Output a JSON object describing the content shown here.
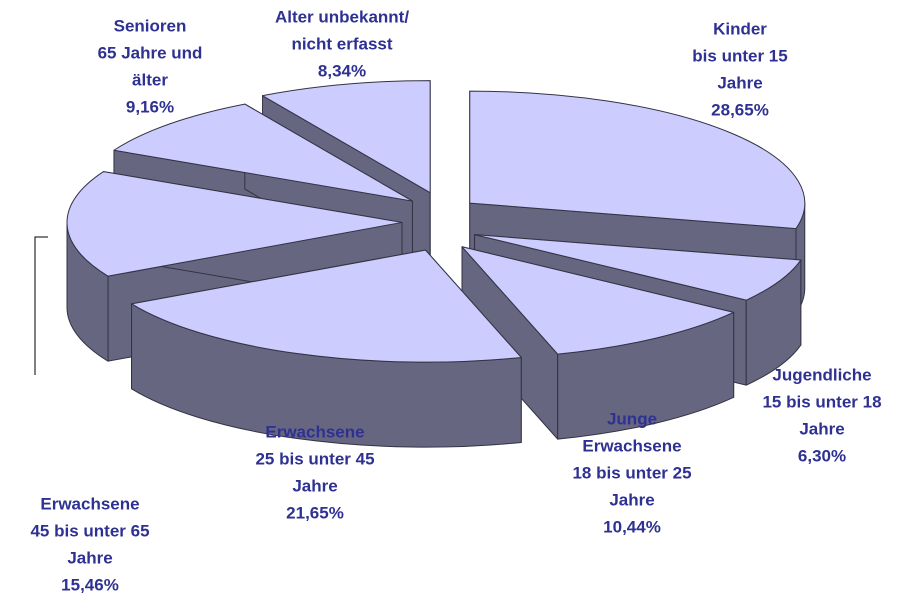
{
  "chart_data": {
    "type": "pie3d",
    "categories": [
      [
        "Kinder",
        "bis unter 15",
        "Jahre"
      ],
      [
        "Jugendliche",
        "15 bis unter 18",
        "Jahre"
      ],
      [
        "Junge",
        "Erwachsene",
        "18 bis unter 25",
        "Jahre"
      ],
      [
        "Erwachsene",
        "25 bis unter 45",
        "Jahre"
      ],
      [
        "Erwachsene",
        "45 bis unter 65",
        "Jahre"
      ],
      [
        "Senioren",
        "65 Jahre und",
        "älter"
      ],
      [
        "Alter unbekannt/",
        "nicht erfasst"
      ]
    ],
    "values": [
      28.65,
      6.3,
      10.44,
      21.65,
      15.46,
      9.16,
      8.34
    ],
    "value_labels": [
      "28,65%",
      "6,30%",
      "10,44%",
      "21,65%",
      "15,46%",
      "9,16%",
      "8,34%"
    ],
    "color": "#ccccff",
    "side_color": "#666680"
  }
}
